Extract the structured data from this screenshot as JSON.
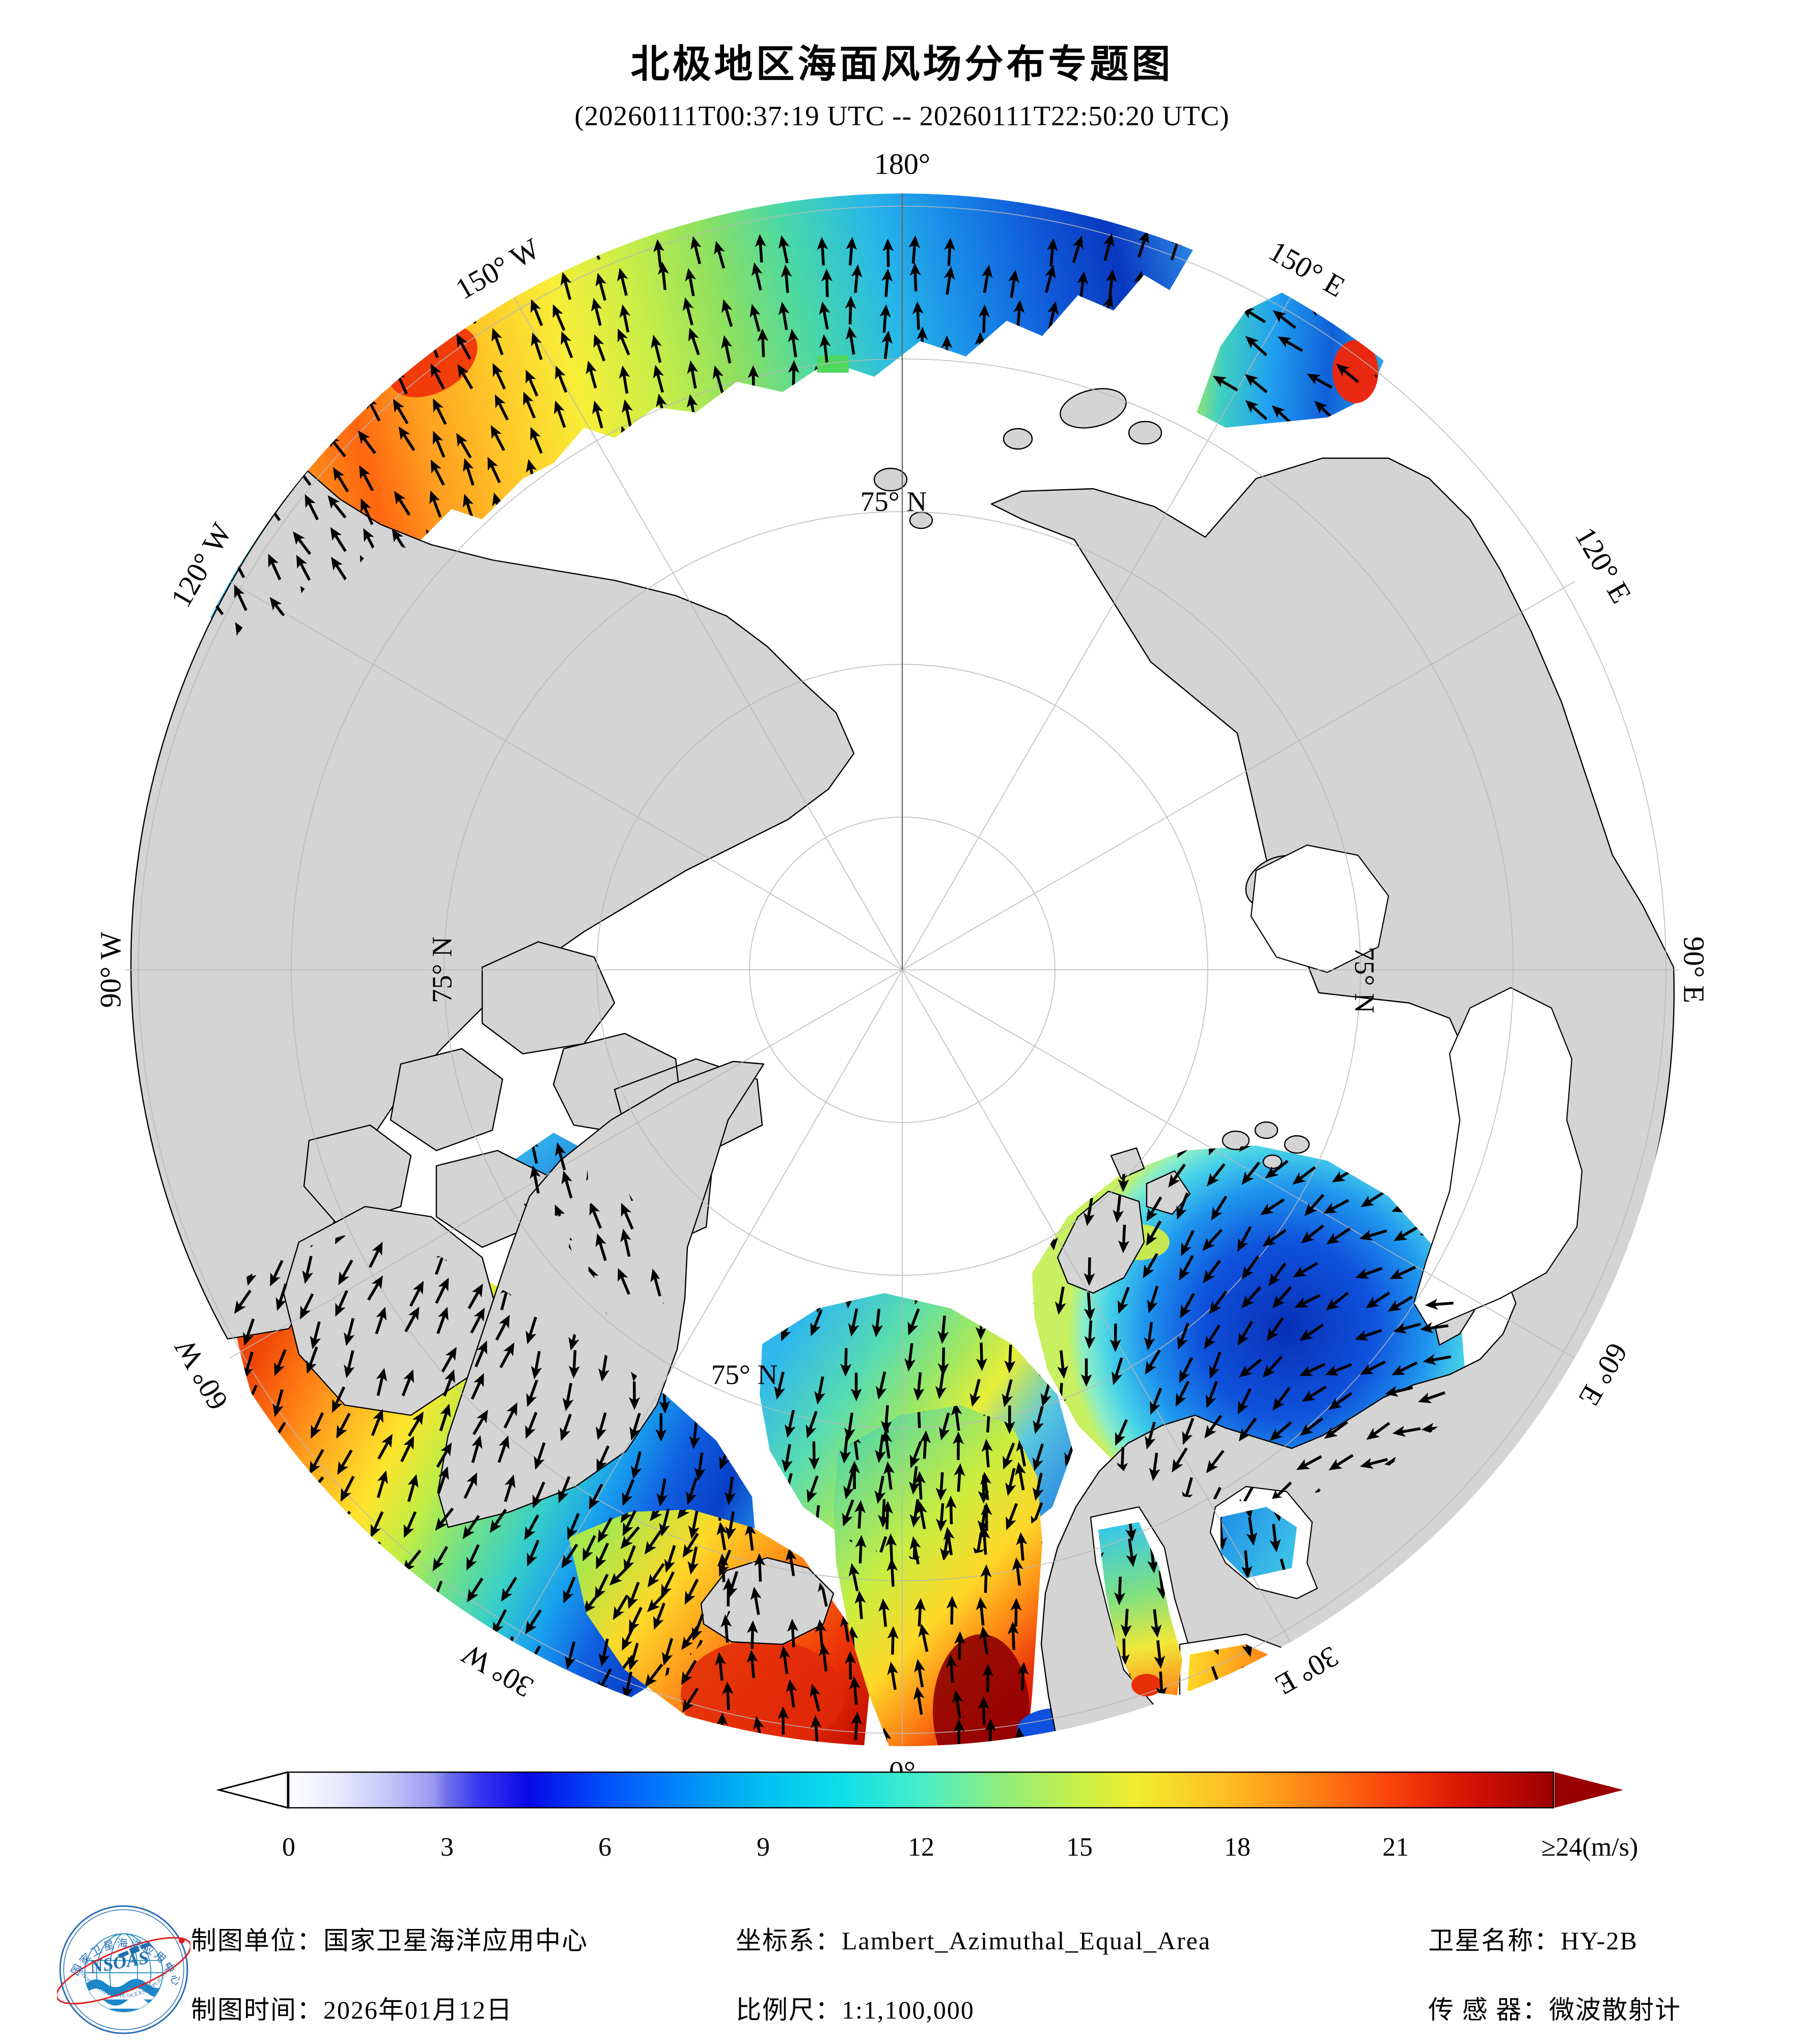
{
  "title": "北极地区海面风场分布专题图",
  "subtitle": "(20260111T00:37:19 UTC -- 20260111T22:50:20 UTC)",
  "map": {
    "projection_note": "polar view, North Pole centered",
    "meridian_labels": [
      "180°",
      "150° E",
      "120° E",
      "90° E",
      "60° E",
      "30° E",
      "0°",
      "30° W",
      "60° W",
      "90° W",
      "120° W",
      "150° W"
    ],
    "latitude_label": "75° N"
  },
  "colorbar": {
    "ticks": [
      "0",
      "3",
      "6",
      "9",
      "12",
      "15",
      "18",
      "21"
    ],
    "max_label": "≥24(m/s)",
    "units": "m/s",
    "range_min": 0,
    "range_max": 24
  },
  "footer": {
    "agency": "制图单位：国家卫星海洋应用中心",
    "date": "制图时间：2026年01月12日",
    "crs": "坐标系：Lambert_Azimuthal_Equal_Area",
    "scale": "比例尺：1:1,100,000",
    "satellite": "卫星名称：HY-2B",
    "sensor": "传 感 器：微波散射计"
  },
  "logo": {
    "cn": "国家卫星海洋应用中心",
    "en": "NATIONAL SATELLITE OCEAN APPLICATION SERVICE",
    "acronym": "NSOAS"
  }
}
